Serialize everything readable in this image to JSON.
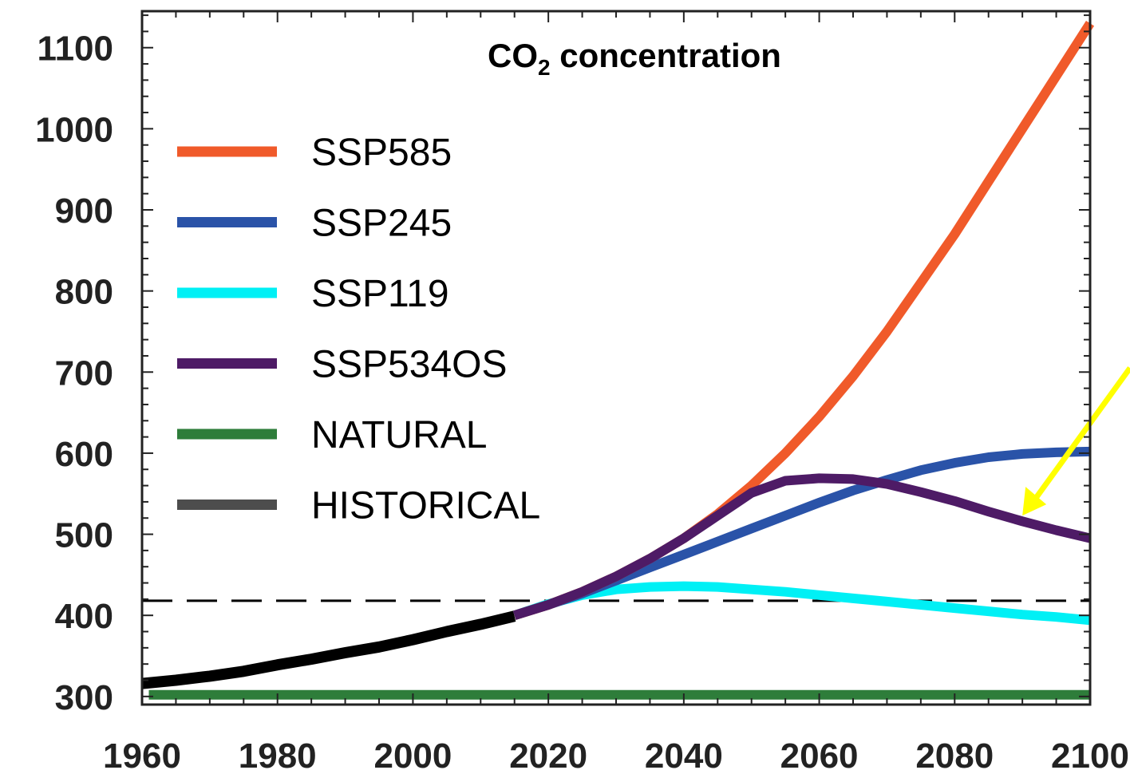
{
  "chart_data": {
    "type": "line",
    "title": "CO",
    "title_subscript": "2",
    "title_suffix": " concentration",
    "xlabel": "",
    "ylabel": "",
    "xlim": [
      1960,
      2100
    ],
    "ylim": [
      290,
      1145
    ],
    "x_ticks": [
      "1960",
      "1980",
      "2000",
      "2020",
      "2040",
      "2060",
      "2080",
      "2100"
    ],
    "y_ticks": [
      "300",
      "400",
      "500",
      "600",
      "700",
      "800",
      "900",
      "1000",
      "1100"
    ],
    "grid": false,
    "legend_position": "top-left",
    "reference_line": {
      "y": 418,
      "style": "dashed",
      "color": "#000000"
    },
    "series": [
      {
        "name": "SSP585",
        "color": "#f05a2a",
        "x": [
          2015,
          2020,
          2025,
          2030,
          2035,
          2040,
          2045,
          2050,
          2055,
          2060,
          2065,
          2070,
          2075,
          2080,
          2085,
          2090,
          2095,
          2100
        ],
        "values": [
          400,
          413,
          429,
          448,
          470,
          495,
          525,
          560,
          600,
          645,
          695,
          750,
          810,
          870,
          935,
          1000,
          1065,
          1130
        ]
      },
      {
        "name": "SSP245",
        "color": "#2a53a8",
        "x": [
          2015,
          2020,
          2025,
          2030,
          2035,
          2040,
          2045,
          2050,
          2055,
          2060,
          2065,
          2070,
          2075,
          2080,
          2085,
          2090,
          2095,
          2100
        ],
        "values": [
          400,
          413,
          427,
          443,
          459,
          475,
          491,
          507,
          523,
          539,
          554,
          567,
          579,
          588,
          595,
          599,
          601,
          602
        ]
      },
      {
        "name": "SSP119",
        "color": "#00f0f5",
        "x": [
          2015,
          2020,
          2025,
          2030,
          2035,
          2040,
          2045,
          2050,
          2055,
          2060,
          2065,
          2070,
          2075,
          2080,
          2085,
          2090,
          2095,
          2100
        ],
        "values": [
          400,
          414,
          425,
          432,
          435,
          436,
          435,
          432,
          429,
          425,
          421,
          417,
          413,
          409,
          405,
          401,
          398,
          394
        ]
      },
      {
        "name": "SSP534OS",
        "color": "#4e1b66",
        "x": [
          2015,
          2020,
          2025,
          2030,
          2035,
          2040,
          2045,
          2050,
          2055,
          2060,
          2065,
          2070,
          2075,
          2080,
          2085,
          2090,
          2095,
          2100
        ],
        "values": [
          400,
          413,
          429,
          448,
          470,
          495,
          523,
          551,
          566,
          569,
          568,
          562,
          552,
          541,
          528,
          516,
          505,
          495
        ]
      },
      {
        "name": "NATURAL",
        "color": "#2e7d3a",
        "x": [
          1961,
          2100
        ],
        "values": [
          302,
          302
        ]
      },
      {
        "name": "HISTORICAL",
        "color": "#000000",
        "legend_color": "#4d4d4d",
        "x": [
          1960,
          1965,
          1970,
          1975,
          1980,
          1985,
          1990,
          1995,
          2000,
          2005,
          2010,
          2015
        ],
        "values": [
          316,
          320,
          325,
          331,
          339,
          346,
          354,
          361,
          370,
          380,
          389,
          399
        ]
      }
    ],
    "annotations": [
      {
        "type": "arrow",
        "color": "#ffff00",
        "points_to": {
          "x": 2090,
          "y": 523
        }
      }
    ]
  }
}
